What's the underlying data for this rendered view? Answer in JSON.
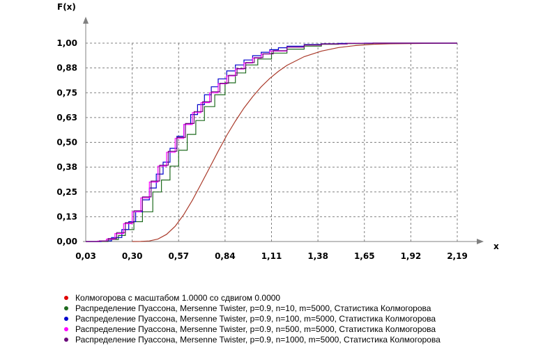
{
  "chart_data": {
    "type": "line",
    "xlabel": "x",
    "ylabel": "F(x)",
    "xlim": [
      0.03,
      2.19
    ],
    "ylim": [
      0.0,
      1.0
    ],
    "x_ticks": [
      "0,03",
      "0,30",
      "0,57",
      "0,84",
      "1,11",
      "1,38",
      "1,65",
      "1,92",
      "2,19"
    ],
    "y_ticks": [
      "0,00",
      "0,13",
      "0,25",
      "0,38",
      "0,50",
      "0,63",
      "0,75",
      "0,88",
      "1,00"
    ],
    "grid": true,
    "legend_position": "bottom",
    "series": [
      {
        "name": "Колмогорова с масштабом 1.0000 со сдвигом 0.0000",
        "color": "#aa3a2a",
        "style": "smooth",
        "x": [
          0.3,
          0.35,
          0.4,
          0.45,
          0.5,
          0.55,
          0.6,
          0.65,
          0.7,
          0.75,
          0.8,
          0.85,
          0.9,
          0.95,
          1.0,
          1.05,
          1.1,
          1.15,
          1.2,
          1.3,
          1.4,
          1.5,
          1.6,
          1.7,
          1.8
        ],
        "y": [
          0.0,
          0.0003,
          0.0028,
          0.0126,
          0.036,
          0.077,
          0.136,
          0.208,
          0.289,
          0.372,
          0.455,
          0.535,
          0.607,
          0.673,
          0.73,
          0.78,
          0.822,
          0.858,
          0.888,
          0.932,
          0.96,
          0.978,
          0.988,
          0.994,
          0.997
        ]
      },
      {
        "name": "Распределение Пуассона, Mersenne Twister, p=0.9, n=10, m=5000, Статистика Колмогорова",
        "color": "#1f6b1f",
        "style": "step",
        "x": [
          0.03,
          0.16,
          0.22,
          0.26,
          0.31,
          0.36,
          0.42,
          0.47,
          0.52,
          0.57,
          0.62,
          0.67,
          0.72,
          0.78,
          0.84,
          0.9,
          0.96,
          1.03,
          1.11,
          1.2,
          1.3,
          1.4,
          1.5,
          1.7,
          2.19
        ],
        "y": [
          0.0,
          0.01,
          0.03,
          0.06,
          0.1,
          0.15,
          0.25,
          0.31,
          0.38,
          0.46,
          0.54,
          0.61,
          0.68,
          0.74,
          0.8,
          0.85,
          0.89,
          0.92,
          0.95,
          0.97,
          0.985,
          0.994,
          0.998,
          1.0,
          1.0
        ]
      },
      {
        "name": "Распределение Пуассона, Mersenne Twister, p=0.9, n=100, m=5000, Статистика Колмогорова",
        "color": "#0000cc",
        "style": "step",
        "x": [
          0.03,
          0.12,
          0.18,
          0.24,
          0.28,
          0.32,
          0.36,
          0.4,
          0.44,
          0.48,
          0.52,
          0.56,
          0.6,
          0.64,
          0.68,
          0.72,
          0.76,
          0.8,
          0.85,
          0.9,
          0.95,
          1.0,
          1.05,
          1.1,
          1.15,
          1.2,
          1.3,
          1.4,
          1.5,
          1.65,
          2.19
        ],
        "y": [
          0.0,
          0.003,
          0.02,
          0.06,
          0.1,
          0.15,
          0.21,
          0.27,
          0.34,
          0.4,
          0.47,
          0.53,
          0.59,
          0.64,
          0.69,
          0.74,
          0.78,
          0.82,
          0.86,
          0.89,
          0.915,
          0.937,
          0.954,
          0.967,
          0.977,
          0.985,
          0.993,
          0.997,
          0.999,
          1.0,
          1.0
        ]
      },
      {
        "name": "Распределение Пуассона, Mersenne Twister, p=0.9, n=500, m=5000, Статистика Колмогорова",
        "color": "#ff00ff",
        "style": "step",
        "x": [
          0.03,
          0.1,
          0.15,
          0.2,
          0.25,
          0.3,
          0.35,
          0.4,
          0.45,
          0.5,
          0.55,
          0.6,
          0.65,
          0.7,
          0.75,
          0.8,
          0.85,
          0.9,
          0.95,
          1.0,
          1.05,
          1.1,
          1.2,
          1.3,
          1.4,
          1.55,
          1.7,
          2.19
        ],
        "y": [
          0.0,
          0.002,
          0.012,
          0.04,
          0.09,
          0.15,
          0.22,
          0.3,
          0.38,
          0.45,
          0.52,
          0.59,
          0.65,
          0.7,
          0.75,
          0.795,
          0.835,
          0.87,
          0.9,
          0.925,
          0.945,
          0.96,
          0.98,
          0.991,
          0.996,
          0.999,
          1.0,
          1.0
        ]
      },
      {
        "name": "Распределение Пуассона, Mersenne Twister, p=0.9, n=1000, m=5000, Статистика Колмогорова",
        "color": "#6a0a7a",
        "style": "step",
        "x": [
          0.03,
          0.11,
          0.16,
          0.21,
          0.26,
          0.31,
          0.36,
          0.41,
          0.46,
          0.51,
          0.56,
          0.61,
          0.66,
          0.71,
          0.76,
          0.81,
          0.86,
          0.91,
          0.96,
          1.01,
          1.06,
          1.12,
          1.2,
          1.3,
          1.4,
          1.55,
          1.7,
          2.19
        ],
        "y": [
          0.0,
          0.003,
          0.015,
          0.045,
          0.095,
          0.155,
          0.225,
          0.305,
          0.385,
          0.455,
          0.525,
          0.595,
          0.655,
          0.705,
          0.755,
          0.798,
          0.838,
          0.872,
          0.902,
          0.927,
          0.946,
          0.962,
          0.98,
          0.991,
          0.996,
          0.999,
          1.0,
          1.0
        ]
      }
    ]
  }
}
